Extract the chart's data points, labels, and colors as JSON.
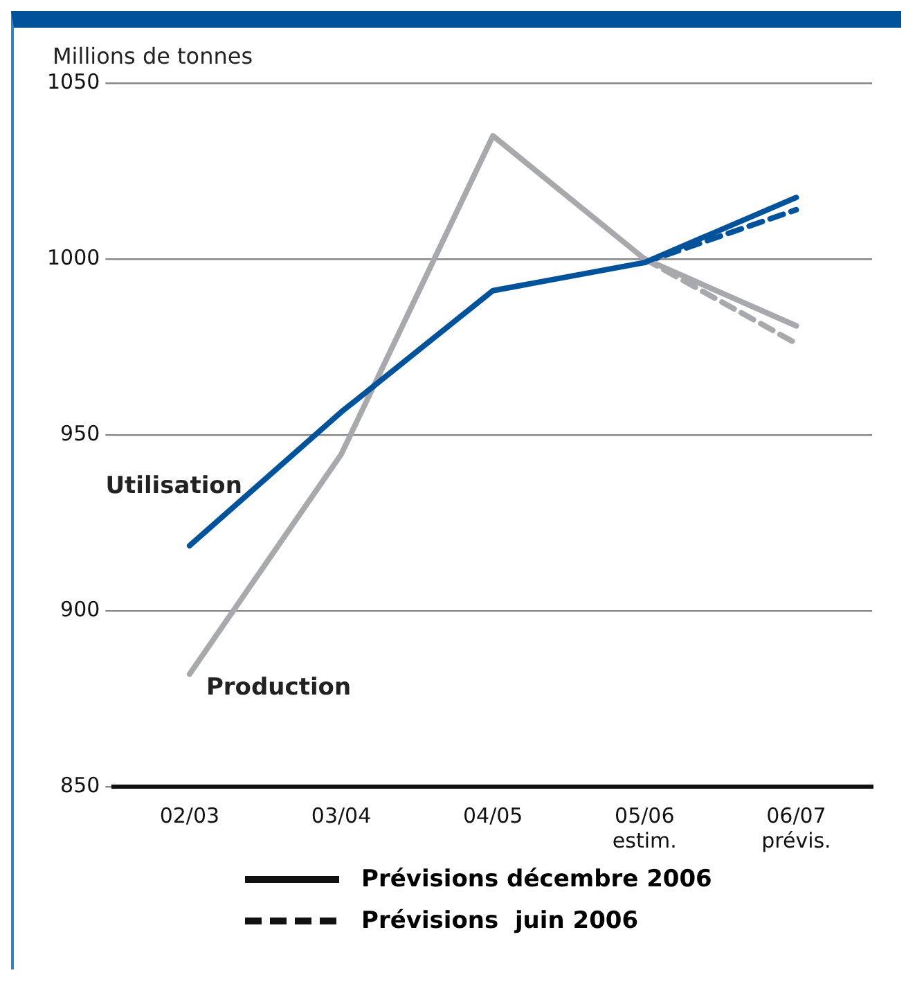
{
  "chart_data": {
    "type": "line",
    "ylabel": "Millions de tonnes",
    "categories": [
      "02/03",
      "03/04",
      "04/05",
      "05/06\nestim.",
      "06/07\nprévis."
    ],
    "series": [
      {
        "name": "Utilisation",
        "color": "#00529b",
        "line_style": "solid",
        "values": [
          918.5,
          956.5,
          991,
          999,
          1017.5
        ]
      },
      {
        "name": "Production",
        "color": "#a7a9ac",
        "line_style": "solid",
        "values": [
          882,
          944.5,
          1035,
          1000,
          981
        ]
      },
      {
        "color": "#00529b",
        "line_style": "dashed",
        "values": [
          null,
          null,
          null,
          999,
          1014
        ]
      },
      {
        "color": "#a7a9ac",
        "line_style": "dashed",
        "values": [
          null,
          null,
          null,
          1000,
          976
        ]
      }
    ],
    "ylim": [
      850,
      1050
    ],
    "yticks": [
      850,
      900,
      950,
      1000,
      1050
    ],
    "grid": "y",
    "marker": "none",
    "annotations": [
      "Prévisions décembre 2006",
      "Prévisions  juin 2006"
    ]
  }
}
